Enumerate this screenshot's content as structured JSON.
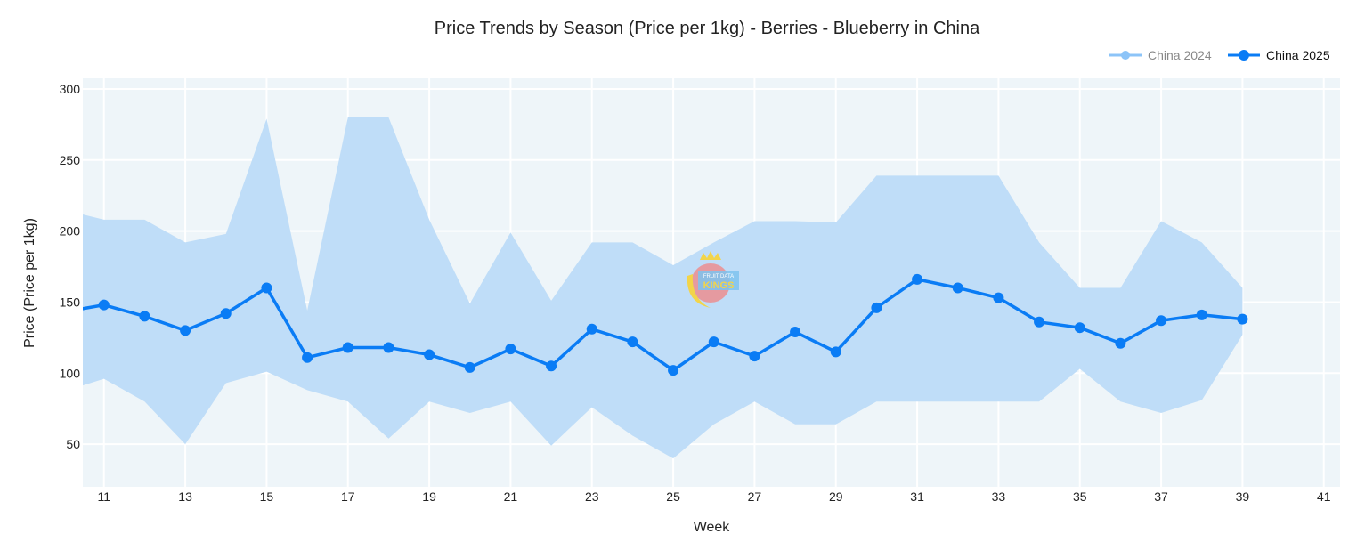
{
  "chart_data": {
    "type": "line",
    "title": "Price Trends by Season (Price per 1kg) - Berries - Blueberry in China",
    "xlabel": "Week",
    "ylabel": "Price (Price per 1kg)",
    "xlim": [
      10.48,
      41.4
    ],
    "ylim": [
      20,
      307.5
    ],
    "xticks": [
      11,
      13,
      15,
      17,
      19,
      21,
      23,
      25,
      27,
      29,
      31,
      33,
      35,
      37,
      39,
      41
    ],
    "yticks": [
      50,
      100,
      150,
      200,
      250,
      300
    ],
    "grid": true,
    "legend_position": "top-right",
    "legend": [
      {
        "name": "China 2024",
        "color": "#8cc4f8",
        "hidden": true
      },
      {
        "name": "China 2025",
        "color": "#0a7cf5",
        "hidden": false
      }
    ],
    "band": {
      "color": "#bfddf8",
      "x": [
        10,
        11,
        12,
        13,
        14,
        15,
        16,
        17,
        18,
        19,
        20,
        21,
        22,
        23,
        24,
        25,
        26,
        27,
        28,
        29,
        30,
        31,
        32,
        33,
        34,
        35,
        36,
        37,
        38,
        39
      ],
      "upper": [
        215,
        208,
        208,
        192,
        198,
        279,
        144,
        280,
        280,
        208,
        149,
        199,
        151,
        192,
        192,
        176,
        192,
        207,
        207,
        206,
        239,
        239,
        239,
        239,
        192,
        160,
        160,
        207,
        192,
        160
      ],
      "lower": [
        87,
        96,
        80,
        50,
        93,
        101,
        88,
        80,
        54,
        80,
        72,
        80,
        49,
        76,
        56,
        40,
        64,
        80,
        64,
        64,
        80,
        80,
        80,
        80,
        80,
        103,
        80,
        72,
        81,
        127
      ]
    },
    "series": [
      {
        "name": "China 2025",
        "x": [
          10,
          11,
          12,
          13,
          14,
          15,
          16,
          17,
          18,
          19,
          20,
          21,
          22,
          23,
          24,
          25,
          26,
          27,
          28,
          29,
          30,
          31,
          32,
          33,
          34,
          35,
          36,
          37,
          38,
          39
        ],
        "values": [
          143,
          148,
          140,
          130,
          142,
          160,
          111,
          118,
          118,
          113,
          104,
          117,
          105,
          131,
          122,
          102,
          122,
          112,
          129,
          115,
          146,
          166,
          160,
          153,
          136,
          132,
          121,
          137,
          141,
          138
        ]
      }
    ]
  },
  "watermark": "FRUIT DATA KINGS"
}
